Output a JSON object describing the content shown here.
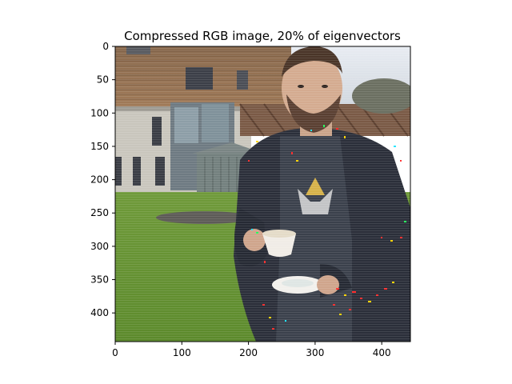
{
  "figure": {
    "title": "Compressed RGB image, 20% of eigenvectors",
    "image_description_icon": "photo-man-holding-cup-and-saucer",
    "x_axis": {
      "ticks": [
        0,
        100,
        200,
        300,
        400
      ],
      "tick_labels": [
        "0",
        "100",
        "200",
        "300",
        "400"
      ],
      "range": [
        0,
        443
      ]
    },
    "y_axis": {
      "ticks": [
        0,
        50,
        100,
        150,
        200,
        250,
        300,
        350,
        400
      ],
      "tick_labels": [
        "0",
        "50",
        "100",
        "150",
        "200",
        "250",
        "300",
        "350",
        "400"
      ],
      "range": [
        0,
        443
      ],
      "inverted": true
    },
    "colors": {
      "axis": "#000000",
      "background": "#ffffff"
    }
  }
}
